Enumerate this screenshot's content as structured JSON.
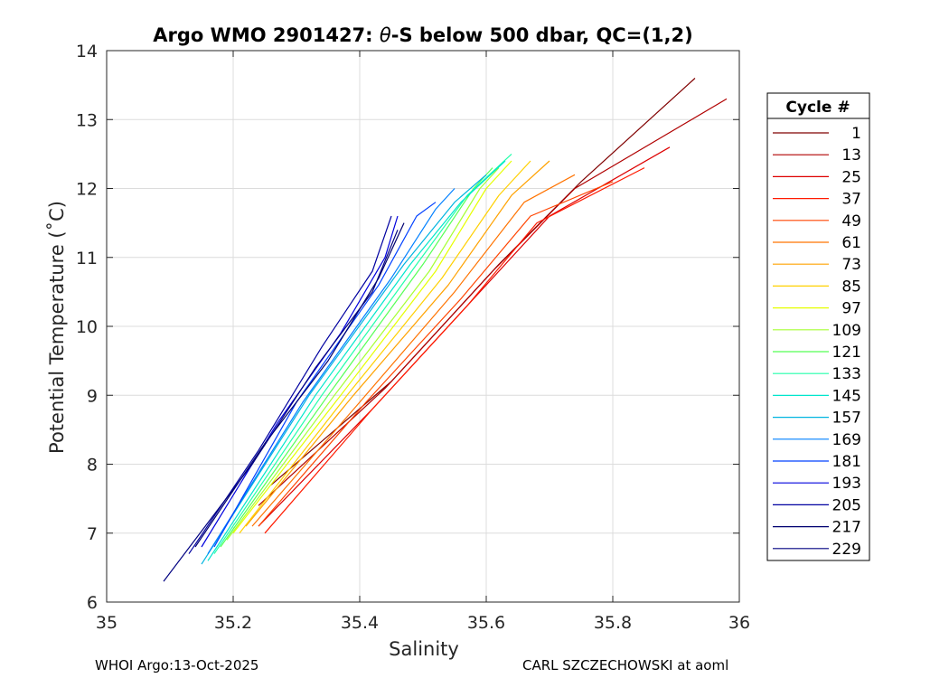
{
  "chart_data": {
    "type": "line",
    "title": "Argo WMO 2901427: θ-S below 500 dbar,  QC=(1,2)",
    "title_prefix": "Argo WMO 2901427: ",
    "title_theta": "θ",
    "title_suffix": "-S below 500 dbar,  QC=(1,2)",
    "xlabel": "Salinity",
    "ylabel": "Potential Temperature (˚C)",
    "xlim": [
      35,
      36
    ],
    "ylim": [
      6,
      14
    ],
    "xticks": [
      35,
      35.2,
      35.4,
      35.6,
      35.8,
      36
    ],
    "xtick_labels": [
      "35",
      "35.2",
      "35.4",
      "35.6",
      "35.8",
      "36"
    ],
    "yticks": [
      6,
      7,
      8,
      9,
      10,
      11,
      12,
      13,
      14
    ],
    "ytick_labels": [
      "6",
      "7",
      "8",
      "9",
      "10",
      "11",
      "12",
      "13",
      "14"
    ],
    "grid": true,
    "legend_title": "Cycle #",
    "legend_position": "right-outside",
    "series": [
      {
        "name": "1",
        "color": "#800000",
        "values": [
          [
            35.26,
            7.7
          ],
          [
            35.45,
            9.2
          ],
          [
            35.62,
            10.9
          ],
          [
            35.75,
            12.1
          ],
          [
            35.93,
            13.6
          ]
        ]
      },
      {
        "name": "13",
        "color": "#b00000",
        "values": [
          [
            35.24,
            7.4
          ],
          [
            35.44,
            9.1
          ],
          [
            35.61,
            10.8
          ],
          [
            35.74,
            12.0
          ],
          [
            35.98,
            13.3
          ]
        ]
      },
      {
        "name": "25",
        "color": "#dd0000",
        "values": [
          [
            35.24,
            7.1
          ],
          [
            35.42,
            8.8
          ],
          [
            35.58,
            10.4
          ],
          [
            35.7,
            11.6
          ],
          [
            35.89,
            12.6
          ]
        ]
      },
      {
        "name": "37",
        "color": "#ff1a00",
        "values": [
          [
            35.25,
            7.0
          ],
          [
            35.42,
            8.8
          ],
          [
            35.57,
            10.3
          ],
          [
            35.68,
            11.5
          ],
          [
            35.85,
            12.3
          ]
        ]
      },
      {
        "name": "49",
        "color": "#ff4400",
        "values": [
          [
            35.24,
            7.1
          ],
          [
            35.41,
            8.9
          ],
          [
            35.56,
            10.4
          ],
          [
            35.67,
            11.6
          ],
          [
            35.8,
            12.1
          ]
        ]
      },
      {
        "name": "61",
        "color": "#ff7300",
        "values": [
          [
            35.23,
            7.1
          ],
          [
            35.4,
            8.9
          ],
          [
            35.55,
            10.5
          ],
          [
            35.66,
            11.8
          ],
          [
            35.74,
            12.2
          ]
        ]
      },
      {
        "name": "73",
        "color": "#ffa200",
        "values": [
          [
            35.22,
            7.1
          ],
          [
            35.39,
            9.0
          ],
          [
            35.54,
            10.6
          ],
          [
            35.64,
            11.9
          ],
          [
            35.7,
            12.4
          ]
        ]
      },
      {
        "name": "85",
        "color": "#ffd000",
        "values": [
          [
            35.21,
            7.0
          ],
          [
            35.38,
            9.0
          ],
          [
            35.53,
            10.7
          ],
          [
            35.62,
            11.9
          ],
          [
            35.67,
            12.4
          ]
        ]
      },
      {
        "name": "97",
        "color": "#e6ff00",
        "values": [
          [
            35.2,
            7.0
          ],
          [
            35.37,
            9.0
          ],
          [
            35.52,
            10.8
          ],
          [
            35.6,
            12.0
          ],
          [
            35.64,
            12.4
          ]
        ]
      },
      {
        "name": "109",
        "color": "#a6ff33",
        "values": [
          [
            35.19,
            6.9
          ],
          [
            35.36,
            9.0
          ],
          [
            35.51,
            10.8
          ],
          [
            35.59,
            12.0
          ],
          [
            35.62,
            12.3
          ]
        ]
      },
      {
        "name": "121",
        "color": "#55ff55",
        "values": [
          [
            35.18,
            6.8
          ],
          [
            35.35,
            9.0
          ],
          [
            35.5,
            10.9
          ],
          [
            35.58,
            12.0
          ],
          [
            35.61,
            12.3
          ]
        ]
      },
      {
        "name": "133",
        "color": "#22ffaa",
        "values": [
          [
            35.17,
            6.7
          ],
          [
            35.34,
            9.0
          ],
          [
            35.49,
            10.9
          ],
          [
            35.57,
            11.9
          ],
          [
            35.64,
            12.5
          ]
        ]
      },
      {
        "name": "145",
        "color": "#00e6cc",
        "values": [
          [
            35.16,
            6.6
          ],
          [
            35.33,
            9.0
          ],
          [
            35.48,
            10.9
          ],
          [
            35.56,
            11.8
          ],
          [
            35.63,
            12.4
          ]
        ]
      },
      {
        "name": "157",
        "color": "#00b4e0",
        "values": [
          [
            35.15,
            6.55
          ],
          [
            35.32,
            9.0
          ],
          [
            35.47,
            10.9
          ],
          [
            35.55,
            11.8
          ],
          [
            35.6,
            12.2
          ]
        ]
      },
      {
        "name": "169",
        "color": "#0080ff",
        "values": [
          [
            35.16,
            6.7
          ],
          [
            35.31,
            8.9
          ],
          [
            35.45,
            10.7
          ],
          [
            35.52,
            11.7
          ],
          [
            35.55,
            12.0
          ]
        ]
      },
      {
        "name": "181",
        "color": "#0040ff",
        "values": [
          [
            35.17,
            6.8
          ],
          [
            35.3,
            8.9
          ],
          [
            35.43,
            10.6
          ],
          [
            35.49,
            11.6
          ],
          [
            35.52,
            11.8
          ]
        ]
      },
      {
        "name": "193",
        "color": "#0000dd",
        "values": [
          [
            35.15,
            6.8
          ],
          [
            35.27,
            8.6
          ],
          [
            35.37,
            9.9
          ],
          [
            35.44,
            11.0
          ],
          [
            35.46,
            11.6
          ]
        ]
      },
      {
        "name": "205",
        "color": "#0000a0",
        "values": [
          [
            35.13,
            6.7
          ],
          [
            35.24,
            8.2
          ],
          [
            35.34,
            9.7
          ],
          [
            35.42,
            10.8
          ],
          [
            35.45,
            11.6
          ]
        ]
      },
      {
        "name": "217",
        "color": "#000070",
        "values": [
          [
            35.14,
            6.8
          ],
          [
            35.25,
            8.3
          ],
          [
            35.35,
            9.5
          ],
          [
            35.43,
            10.7
          ],
          [
            35.47,
            11.5
          ]
        ]
      },
      {
        "name": "229",
        "color": "#000080",
        "values": [
          [
            35.09,
            6.3
          ],
          [
            35.23,
            8.0
          ],
          [
            35.33,
            9.4
          ],
          [
            35.42,
            10.5
          ],
          [
            35.46,
            11.4
          ]
        ]
      }
    ]
  },
  "footer": {
    "left": "WHOI Argo:13-Oct-2025",
    "right": "CARL SZCZECHOWSKI at aoml"
  }
}
